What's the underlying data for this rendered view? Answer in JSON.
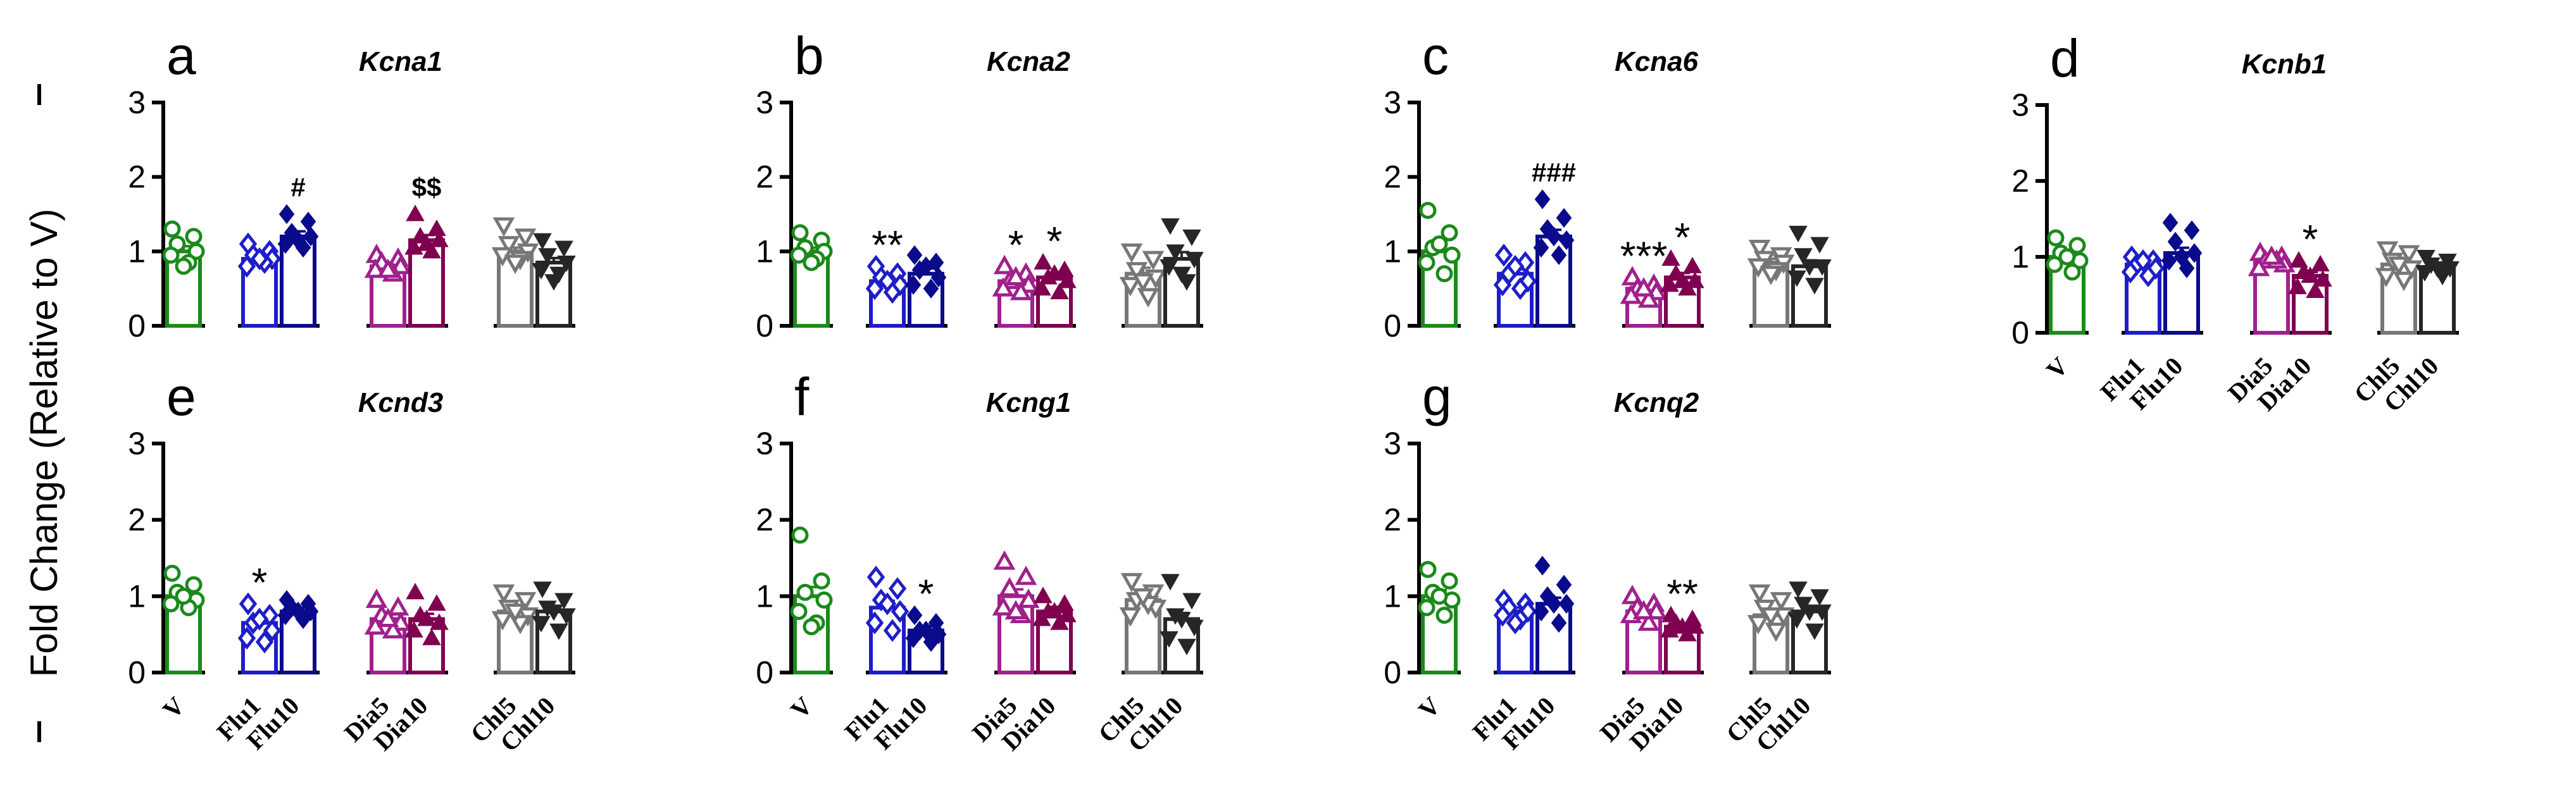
{
  "figure": {
    "y_axis_label": "Fold Change (Relative to V)",
    "groups": [
      "V",
      "Flu1",
      "Flu10",
      "Dia5",
      "Dia10",
      "Chl5",
      "Chl10"
    ],
    "colors": {
      "V": "#1a8a1a",
      "Flu1": "#1e1ec8",
      "Flu10": "#0a0a8c",
      "Dia5": "#a0208c",
      "Dia10": "#800050",
      "Chl5": "#777777",
      "Chl10": "#262626"
    },
    "markers": {
      "V": "open-circle",
      "Flu1": "open-diamond",
      "Flu10": "filled-diamond",
      "Dia5": "open-triangle-up",
      "Dia10": "filled-triangle-up",
      "Chl5": "open-triangle-down",
      "Chl10": "filled-triangle-down"
    }
  },
  "chart_data": [
    {
      "type": "bar",
      "panel": "a",
      "title": "Kcna1",
      "ylim": [
        0,
        3
      ],
      "yticks": [
        "0",
        "1",
        "2",
        "3"
      ],
      "categories": [
        "V",
        "Flu1",
        "Flu10",
        "Dia5",
        "Dia10",
        "Chl5",
        "Chl10"
      ],
      "values": [
        1.0,
        0.9,
        1.2,
        0.8,
        1.15,
        1.0,
        0.85
      ],
      "errors": [
        0.07,
        0.05,
        0.07,
        0.05,
        0.07,
        0.05,
        0.06
      ],
      "points": [
        [
          1.3,
          1.2,
          1.1,
          1.0,
          0.95,
          0.85,
          0.8
        ],
        [
          1.1,
          1.0,
          0.95,
          0.9,
          0.8,
          0.85,
          0.9
        ],
        [
          1.5,
          1.4,
          1.25,
          1.2,
          1.1,
          1.05,
          1.15
        ],
        [
          0.95,
          0.9,
          0.85,
          0.8,
          0.75,
          0.7,
          0.75
        ],
        [
          1.5,
          1.3,
          1.2,
          1.15,
          1.05,
          1.0,
          1.1
        ],
        [
          1.35,
          1.2,
          1.1,
          1.0,
          0.95,
          0.9,
          0.85
        ],
        [
          1.15,
          1.05,
          0.95,
          0.85,
          0.75,
          0.7,
          0.6
        ]
      ],
      "annotations": [
        {
          "group": "Flu10",
          "text": "#"
        },
        {
          "group": "Dia10",
          "text": "$$"
        }
      ],
      "show_xlabels": false
    },
    {
      "type": "bar",
      "panel": "b",
      "title": "Kcna2",
      "ylim": [
        0,
        3
      ],
      "yticks": [
        "0",
        "1",
        "2",
        "3"
      ],
      "categories": [
        "V",
        "Flu1",
        "Flu10",
        "Dia5",
        "Dia10",
        "Chl5",
        "Chl10"
      ],
      "values": [
        1.0,
        0.6,
        0.7,
        0.6,
        0.65,
        0.7,
        0.9
      ],
      "errors": [
        0.05,
        0.05,
        0.07,
        0.06,
        0.06,
        0.08,
        0.09
      ],
      "points": [
        [
          1.25,
          1.15,
          1.05,
          1.0,
          0.95,
          0.9,
          0.85
        ],
        [
          0.8,
          0.7,
          0.65,
          0.55,
          0.5,
          0.45,
          0.6
        ],
        [
          0.95,
          0.85,
          0.75,
          0.65,
          0.55,
          0.5,
          0.8
        ],
        [
          0.8,
          0.7,
          0.6,
          0.55,
          0.5,
          0.45,
          0.65
        ],
        [
          0.85,
          0.75,
          0.65,
          0.6,
          0.5,
          0.45,
          0.7
        ],
        [
          1.0,
          0.9,
          0.75,
          0.65,
          0.55,
          0.4,
          0.6
        ],
        [
          1.35,
          1.2,
          1.0,
          0.9,
          0.8,
          0.6,
          0.7
        ]
      ],
      "annotations": [
        {
          "group": "Flu1",
          "text": "**"
        },
        {
          "group": "Dia5",
          "text": "*"
        },
        {
          "group": "Dia10",
          "text": "*"
        }
      ],
      "show_xlabels": false
    },
    {
      "type": "bar",
      "panel": "c",
      "title": "Kcna6",
      "ylim": [
        0,
        3
      ],
      "yticks": [
        "0",
        "1",
        "2",
        "3"
      ],
      "categories": [
        "V",
        "Flu1",
        "Flu10",
        "Dia5",
        "Dia10",
        "Chl5",
        "Chl10"
      ],
      "values": [
        1.0,
        0.7,
        1.2,
        0.5,
        0.65,
        0.85,
        0.8
      ],
      "errors": [
        0.08,
        0.06,
        0.09,
        0.04,
        0.06,
        0.05,
        0.08
      ],
      "points": [
        [
          1.55,
          1.25,
          1.05,
          0.95,
          0.85,
          0.7,
          1.1
        ],
        [
          0.95,
          0.85,
          0.7,
          0.6,
          0.55,
          0.5,
          0.8
        ],
        [
          1.7,
          1.45,
          1.3,
          1.15,
          1.05,
          0.95,
          1.2
        ],
        [
          0.65,
          0.55,
          0.5,
          0.45,
          0.4,
          0.35,
          0.5
        ],
        [
          0.9,
          0.8,
          0.7,
          0.6,
          0.55,
          0.5,
          0.6
        ],
        [
          1.05,
          0.95,
          0.9,
          0.85,
          0.8,
          0.75,
          0.7
        ],
        [
          1.25,
          1.1,
          0.95,
          0.8,
          0.65,
          0.55,
          0.8
        ]
      ],
      "annotations": [
        {
          "group": "Flu10",
          "text": "###"
        },
        {
          "group": "Dia5",
          "text": "***"
        },
        {
          "group": "Dia10",
          "text": "*"
        }
      ],
      "show_xlabels": false
    },
    {
      "type": "bar",
      "panel": "d",
      "title": "Kcnb1",
      "ylim": [
        0,
        3
      ],
      "yticks": [
        "0",
        "1",
        "2",
        "3"
      ],
      "categories": [
        "V",
        "Flu1",
        "Flu10",
        "Dia5",
        "Dia10",
        "Chl5",
        "Chl10"
      ],
      "values": [
        1.0,
        0.9,
        1.05,
        0.95,
        0.75,
        0.9,
        0.85
      ],
      "errors": [
        0.06,
        0.05,
        0.07,
        0.04,
        0.05,
        0.06,
        0.05
      ],
      "points": [
        [
          1.25,
          1.15,
          1.05,
          0.95,
          0.9,
          0.8,
          1.0
        ],
        [
          1.0,
          0.95,
          0.9,
          0.85,
          0.8,
          0.75,
          0.95
        ],
        [
          1.45,
          1.35,
          1.2,
          1.05,
          0.95,
          0.85,
          1.0
        ],
        [
          1.05,
          1.0,
          0.95,
          0.9,
          0.85,
          0.95,
          1.0
        ],
        [
          0.95,
          0.9,
          0.8,
          0.7,
          0.6,
          0.55,
          0.75
        ],
        [
          1.1,
          1.05,
          0.95,
          0.85,
          0.75,
          0.7,
          0.9
        ],
        [
          1.0,
          0.95,
          0.9,
          0.85,
          0.8,
          0.75,
          0.85
        ]
      ],
      "annotations": [
        {
          "group": "Dia10",
          "text": "*"
        }
      ],
      "show_xlabels": true
    },
    {
      "type": "bar",
      "panel": "e",
      "title": "Kcnd3",
      "ylim": [
        0,
        3
      ],
      "yticks": [
        "0",
        "1",
        "2",
        "3"
      ],
      "categories": [
        "V",
        "Flu1",
        "Flu10",
        "Dia5",
        "Dia10",
        "Chl5",
        "Chl10"
      ],
      "values": [
        1.0,
        0.65,
        0.8,
        0.7,
        0.7,
        0.8,
        0.8
      ],
      "errors": [
        0.06,
        0.06,
        0.05,
        0.06,
        0.07,
        0.05,
        0.06
      ],
      "points": [
        [
          1.3,
          1.15,
          1.05,
          0.95,
          0.9,
          0.85,
          1.0
        ],
        [
          0.9,
          0.75,
          0.65,
          0.55,
          0.45,
          0.4,
          0.7
        ],
        [
          0.95,
          0.9,
          0.85,
          0.8,
          0.75,
          0.7,
          0.8
        ],
        [
          0.95,
          0.85,
          0.75,
          0.65,
          0.6,
          0.55,
          0.7
        ],
        [
          1.05,
          0.9,
          0.75,
          0.65,
          0.55,
          0.45,
          0.7
        ],
        [
          1.05,
          0.95,
          0.85,
          0.75,
          0.7,
          0.65,
          0.8
        ],
        [
          1.1,
          0.95,
          0.85,
          0.75,
          0.65,
          0.55,
          0.8
        ]
      ],
      "annotations": [
        {
          "group": "Flu1",
          "text": "*"
        }
      ],
      "show_xlabels": true
    },
    {
      "type": "bar",
      "panel": "f",
      "title": "Kcng1",
      "ylim": [
        0,
        3
      ],
      "yticks": [
        "0",
        "1",
        "2",
        "3"
      ],
      "categories": [
        "V",
        "Flu1",
        "Flu10",
        "Dia5",
        "Dia10",
        "Chl5",
        "Chl10"
      ],
      "values": [
        1.0,
        0.85,
        0.55,
        1.0,
        0.8,
        0.95,
        0.7
      ],
      "errors": [
        0.12,
        0.09,
        0.06,
        0.09,
        0.06,
        0.07,
        0.08
      ],
      "points": [
        [
          1.8,
          1.2,
          1.05,
          0.95,
          0.8,
          0.65,
          0.6
        ],
        [
          1.25,
          1.1,
          0.95,
          0.8,
          0.65,
          0.55,
          0.9
        ],
        [
          0.75,
          0.65,
          0.55,
          0.5,
          0.45,
          0.4,
          0.55
        ],
        [
          1.45,
          1.25,
          1.1,
          0.95,
          0.85,
          0.75,
          0.8
        ],
        [
          1.0,
          0.9,
          0.8,
          0.75,
          0.7,
          0.65,
          0.8
        ],
        [
          1.2,
          1.05,
          0.95,
          0.85,
          0.75,
          0.9,
          1.0
        ],
        [
          1.2,
          0.95,
          0.75,
          0.6,
          0.45,
          0.35,
          0.7
        ]
      ],
      "annotations": [
        {
          "group": "Flu10",
          "text": "*"
        }
      ],
      "show_xlabels": true
    },
    {
      "type": "bar",
      "panel": "g",
      "title": "Kcnq2",
      "ylim": [
        0,
        3
      ],
      "yticks": [
        "0",
        "1",
        "2",
        "3"
      ],
      "categories": [
        "V",
        "Flu1",
        "Flu10",
        "Dia5",
        "Dia10",
        "Chl5",
        "Chl10"
      ],
      "values": [
        1.0,
        0.8,
        0.9,
        0.8,
        0.6,
        0.75,
        0.8
      ],
      "errors": [
        0.08,
        0.05,
        0.08,
        0.06,
        0.04,
        0.06,
        0.07
      ],
      "points": [
        [
          1.35,
          1.2,
          1.05,
          0.95,
          0.85,
          0.75,
          1.0
        ],
        [
          0.95,
          0.9,
          0.85,
          0.8,
          0.75,
          0.7,
          0.65
        ],
        [
          1.4,
          1.15,
          1.0,
          0.9,
          0.8,
          0.65,
          0.9
        ],
        [
          1.0,
          0.9,
          0.85,
          0.8,
          0.75,
          0.65,
          0.8
        ],
        [
          0.75,
          0.7,
          0.65,
          0.6,
          0.55,
          0.5,
          0.6
        ],
        [
          1.05,
          0.95,
          0.85,
          0.75,
          0.65,
          0.55,
          0.75
        ],
        [
          1.1,
          1.0,
          0.9,
          0.8,
          0.7,
          0.55,
          0.8
        ]
      ],
      "annotations": [
        {
          "group": "Dia10",
          "text": "**"
        }
      ],
      "show_xlabels": true
    }
  ]
}
